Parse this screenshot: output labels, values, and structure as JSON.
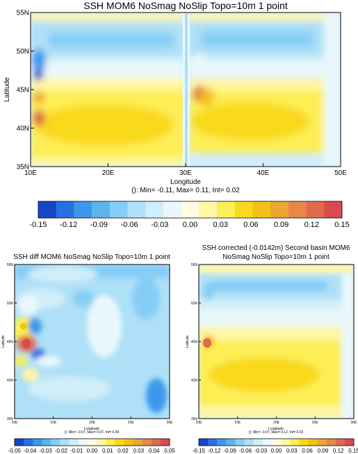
{
  "colors": {
    "palette": [
      "#1646c8",
      "#2a6fe0",
      "#3b98ec",
      "#5cb4ef",
      "#86cdf5",
      "#aee0f7",
      "#d0eef9",
      "#eaf8fc",
      "#fffce0",
      "#fff6a6",
      "#fdee55",
      "#f9d91c",
      "#f3c21a",
      "#eca633",
      "#e78848",
      "#e06a4e",
      "#d94a4e"
    ]
  },
  "panel_top": {
    "title": "SSH MOM6 NoSmag NoSlip Topo=10m 1 point",
    "xlabel": "Longitude",
    "ylabel": "Latitude",
    "stats": "(): Min= -0.11, Max= 0.11, Int= 0.02"
  },
  "panel_bl": {
    "title": "SSH diff MOM6 NoSmag NoSlip Topo=10m 1 point",
    "xlabel": "Longitude",
    "ylabel": "Latitude",
    "stats": "(): Min= -0.07, Max= 0.07, Int= 0.00"
  },
  "panel_br": {
    "title_line1": "SSH corrected (-0.0142m) Second basin MOM6",
    "title_line2": "NoSmag NoSlip Topo=10m 1 point",
    "xlabel": "Longitude",
    "ylabel": "Latitude",
    "stats": "(): Min= -0.07, Max= 0.12, Int= 0.02"
  },
  "chart_data": [
    {
      "type": "heatmap",
      "title": "SSH MOM6 NoSmag NoSlip Topo=10m 1 point",
      "xlabel": "Longitude",
      "ylabel": "Latitude",
      "xlim": [
        10,
        50
      ],
      "ylim": [
        35,
        55
      ],
      "xticks": [
        "10E",
        "20E",
        "30E",
        "40E",
        "50E"
      ],
      "yticks": [
        "35N",
        "40N",
        "45N",
        "50N",
        "55N"
      ],
      "stats": "(): Min= -0.11, Max= 0.11, Int= 0.02",
      "colorbar": {
        "min": -0.15,
        "max": 0.15,
        "ticks": [
          "-0.15",
          "-0.12",
          "-0.09",
          "-0.06",
          "-0.03",
          "0.00",
          "0.03",
          "0.06",
          "0.09",
          "0.12",
          "0.15"
        ]
      }
    },
    {
      "type": "heatmap",
      "title": "SSH diff MOM6 NoSmag NoSlip Topo=10m 1 point",
      "xlabel": "Longitude",
      "ylabel": "Latitude",
      "xlim": [
        10,
        30
      ],
      "ylim": [
        35,
        55
      ],
      "xticks": [
        "10E",
        "15E",
        "20E",
        "25E",
        "30E"
      ],
      "yticks": [
        "35N",
        "40N",
        "45N",
        "50N",
        "55N"
      ],
      "stats": "(): Min= -0.07, Max= 0.07, Int= 0.00",
      "colorbar": {
        "min": -0.05,
        "max": 0.05,
        "ticks": [
          "-0.05",
          "-0.04",
          "-0.03",
          "-0.02",
          "-0.01",
          "0.00",
          "0.01",
          "0.02",
          "0.03",
          "0.04",
          "0.05"
        ]
      }
    },
    {
      "type": "heatmap",
      "title": "SSH corrected (-0.0142m) Second basin MOM6 NoSmag NoSlip Topo=10m 1 point",
      "xlabel": "Longitude",
      "ylabel": "Latitude",
      "xlim": [
        10,
        30
      ],
      "ylim": [
        35,
        55
      ],
      "xticks": [
        "10E",
        "15E",
        "20E",
        "25E",
        "30E"
      ],
      "yticks": [
        "35N",
        "40N",
        "45N",
        "50N",
        "55N"
      ],
      "stats": "(): Min= -0.07, Max= 0.12, Int= 0.02",
      "colorbar": {
        "min": -0.15,
        "max": 0.15,
        "ticks": [
          "-0.15",
          "-0.12",
          "-0.09",
          "-0.06",
          "-0.03",
          "0.00",
          "0.03",
          "0.06",
          "0.09",
          "0.12",
          "0.15"
        ]
      }
    }
  ]
}
